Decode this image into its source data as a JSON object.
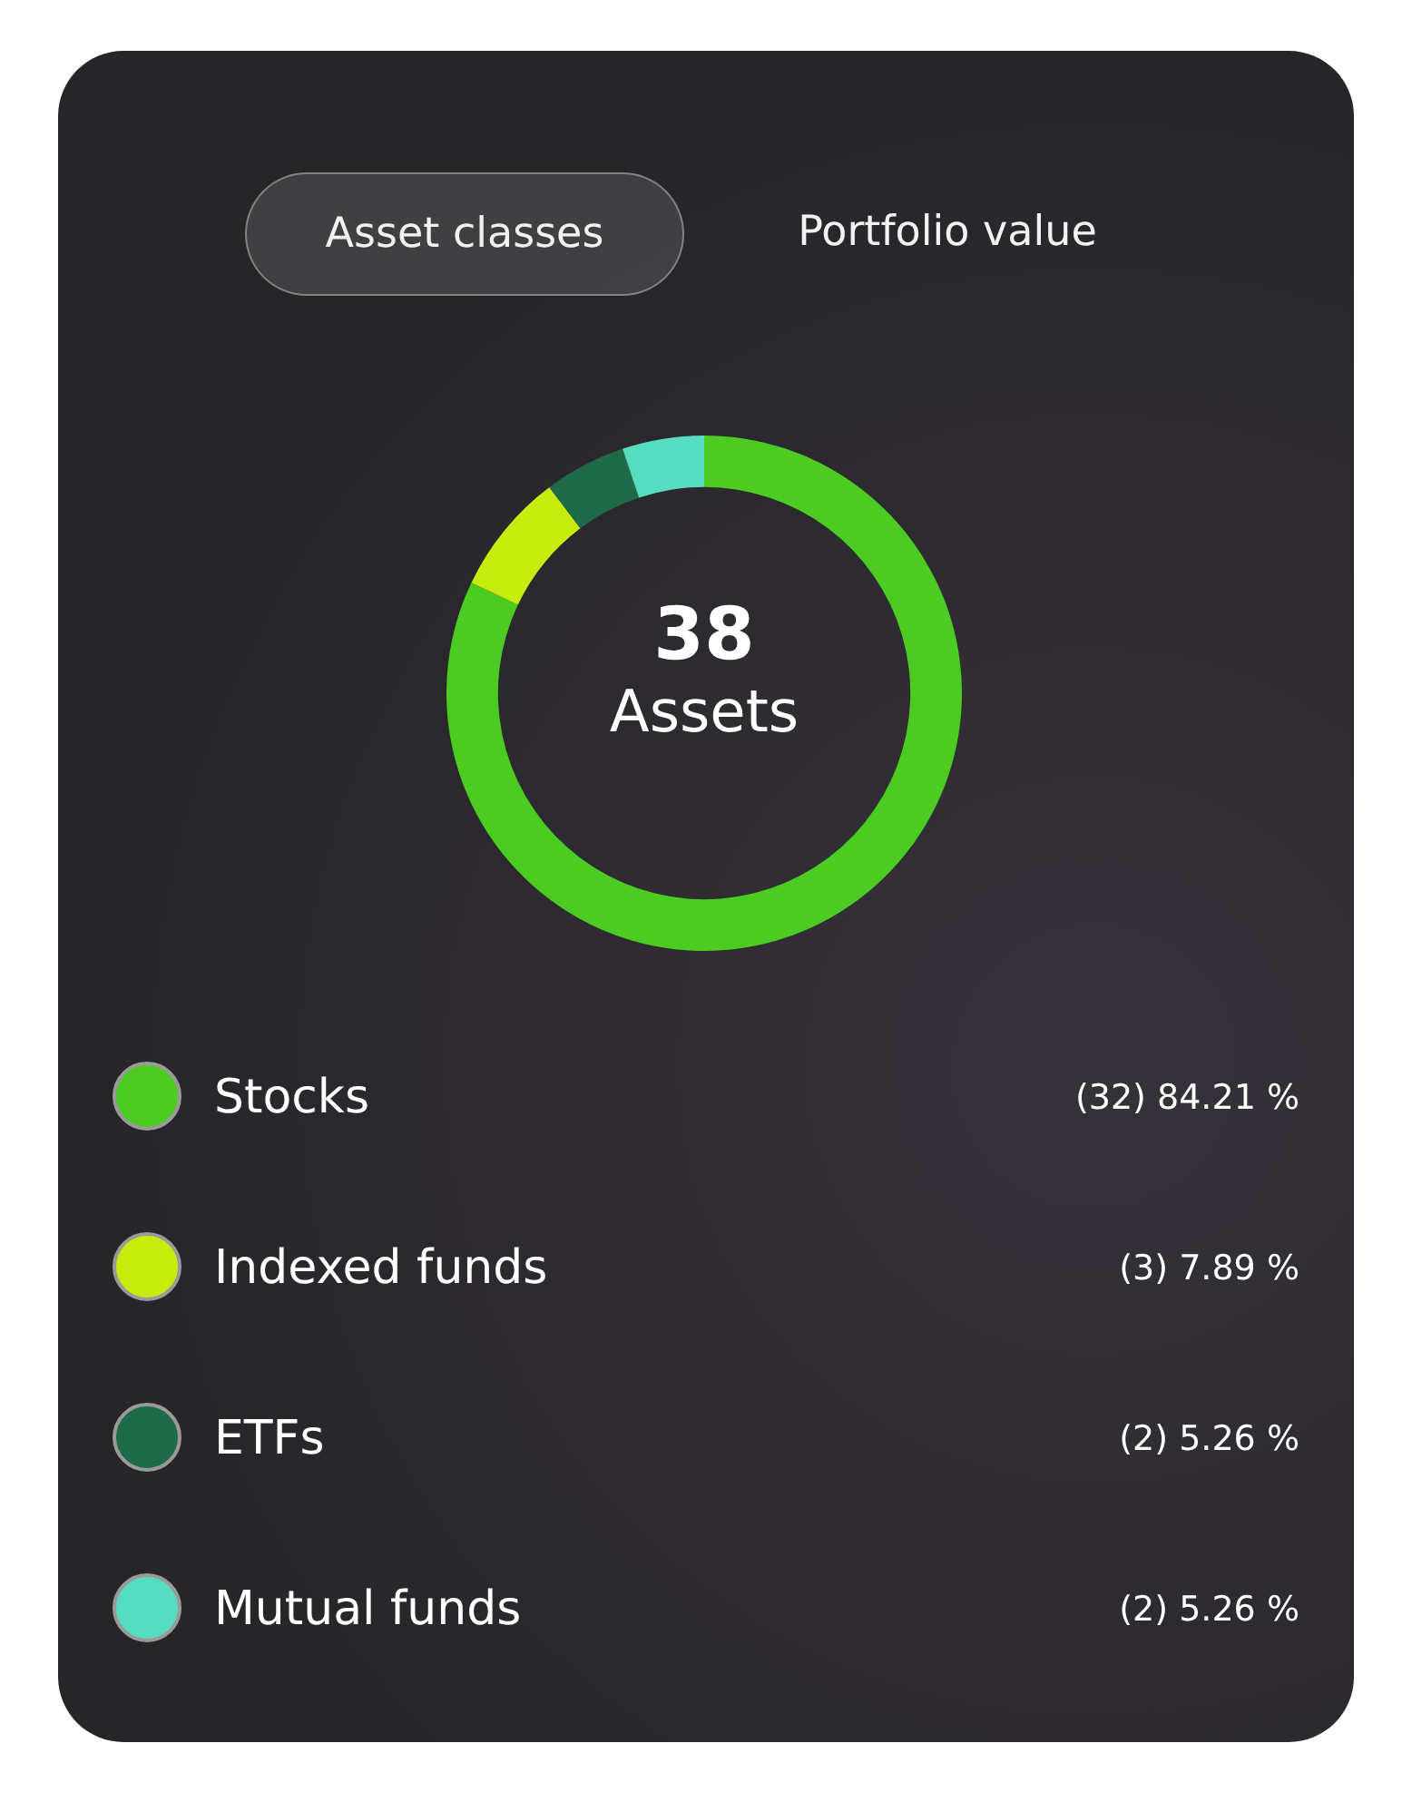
{
  "chart_data": {
    "type": "donut",
    "annotations": [
      "Asset classes",
      "Portfolio value",
      "38",
      "Assets"
    ],
    "categories": [
      "Stocks",
      "Indexed funds",
      "ETFs",
      "Mutual funds"
    ],
    "values": [
      32,
      3,
      2,
      2
    ],
    "colors": [
      "#4ccc22",
      "#c6ec0c",
      "#1f6a48",
      "#56dcc0"
    ],
    "value_labels": [
      "(32) 84.21 %",
      "(3) 7.89 %",
      "(2) 5.26 %",
      "(2) 5.26 %"
    ],
    "legend": "bottom"
  }
}
